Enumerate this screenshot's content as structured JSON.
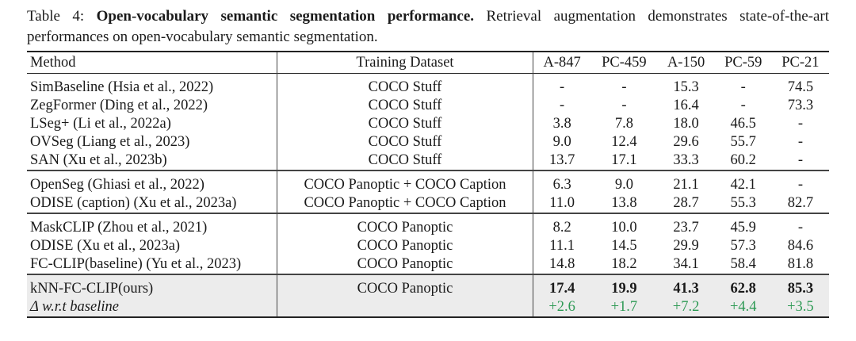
{
  "caption": {
    "label": "Table 4:",
    "title": "Open-vocabulary semantic segmentation performance.",
    "text": "Retrieval augmentation demonstrates state-of-the-art performances on open-vocabulary semantic segmentation."
  },
  "table": {
    "headers": [
      "Method",
      "Training Dataset",
      "A-847",
      "PC-459",
      "A-150",
      "PC-59",
      "PC-21"
    ],
    "groups": [
      [
        {
          "method": "SimBaseline (Hsia et al., 2022)",
          "dataset": "COCO Stuff",
          "values": [
            "-",
            "-",
            "15.3",
            "-",
            "74.5"
          ]
        },
        {
          "method": "ZegFormer (Ding et al., 2022)",
          "dataset": "COCO Stuff",
          "values": [
            "-",
            "-",
            "16.4",
            "-",
            "73.3"
          ]
        },
        {
          "method": "LSeg+ (Li et al., 2022a)",
          "dataset": "COCO Stuff",
          "values": [
            "3.8",
            "7.8",
            "18.0",
            "46.5",
            "-"
          ]
        },
        {
          "method": "OVSeg (Liang et al., 2023)",
          "dataset": "COCO Stuff",
          "values": [
            "9.0",
            "12.4",
            "29.6",
            "55.7",
            "-"
          ]
        },
        {
          "method": "SAN (Xu et al., 2023b)",
          "dataset": "COCO Stuff",
          "values": [
            "13.7",
            "17.1",
            "33.3",
            "60.2",
            "-"
          ]
        }
      ],
      [
        {
          "method": "OpenSeg (Ghiasi et al., 2022)",
          "dataset": "COCO Panoptic + COCO Caption",
          "values": [
            "6.3",
            "9.0",
            "21.1",
            "42.1",
            "-"
          ]
        },
        {
          "method": "ODISE (caption) (Xu et al., 2023a)",
          "dataset": "COCO Panoptic + COCO Caption",
          "values": [
            "11.0",
            "13.8",
            "28.7",
            "55.3",
            "82.7"
          ]
        }
      ],
      [
        {
          "method": "MaskCLIP (Zhou et al., 2021)",
          "dataset": "COCO Panoptic",
          "values": [
            "8.2",
            "10.0",
            "23.7",
            "45.9",
            "-"
          ]
        },
        {
          "method": "ODISE (Xu et al., 2023a)",
          "dataset": "COCO Panoptic",
          "values": [
            "11.1",
            "14.5",
            "29.9",
            "57.3",
            "84.6"
          ]
        },
        {
          "method": "FC-CLIP(baseline) (Yu et al., 2023)",
          "dataset": "COCO Panoptic",
          "values": [
            "14.8",
            "18.2",
            "34.1",
            "58.4",
            "81.8"
          ]
        }
      ],
      [
        {
          "method": "kNN-FC-CLIP(ours)",
          "dataset": "COCO Panoptic",
          "values": [
            "17.4",
            "19.9",
            "41.3",
            "62.8",
            "85.3"
          ],
          "style": "bold"
        },
        {
          "method": "Δ w.r.t baseline",
          "dataset": "",
          "values": [
            "+2.6",
            "+1.7",
            "+7.2",
            "+4.4",
            "+3.5"
          ],
          "style": "delta"
        }
      ]
    ]
  },
  "colors": {
    "highlight_bg": "#ececec",
    "delta_green": "#2e9a55"
  }
}
